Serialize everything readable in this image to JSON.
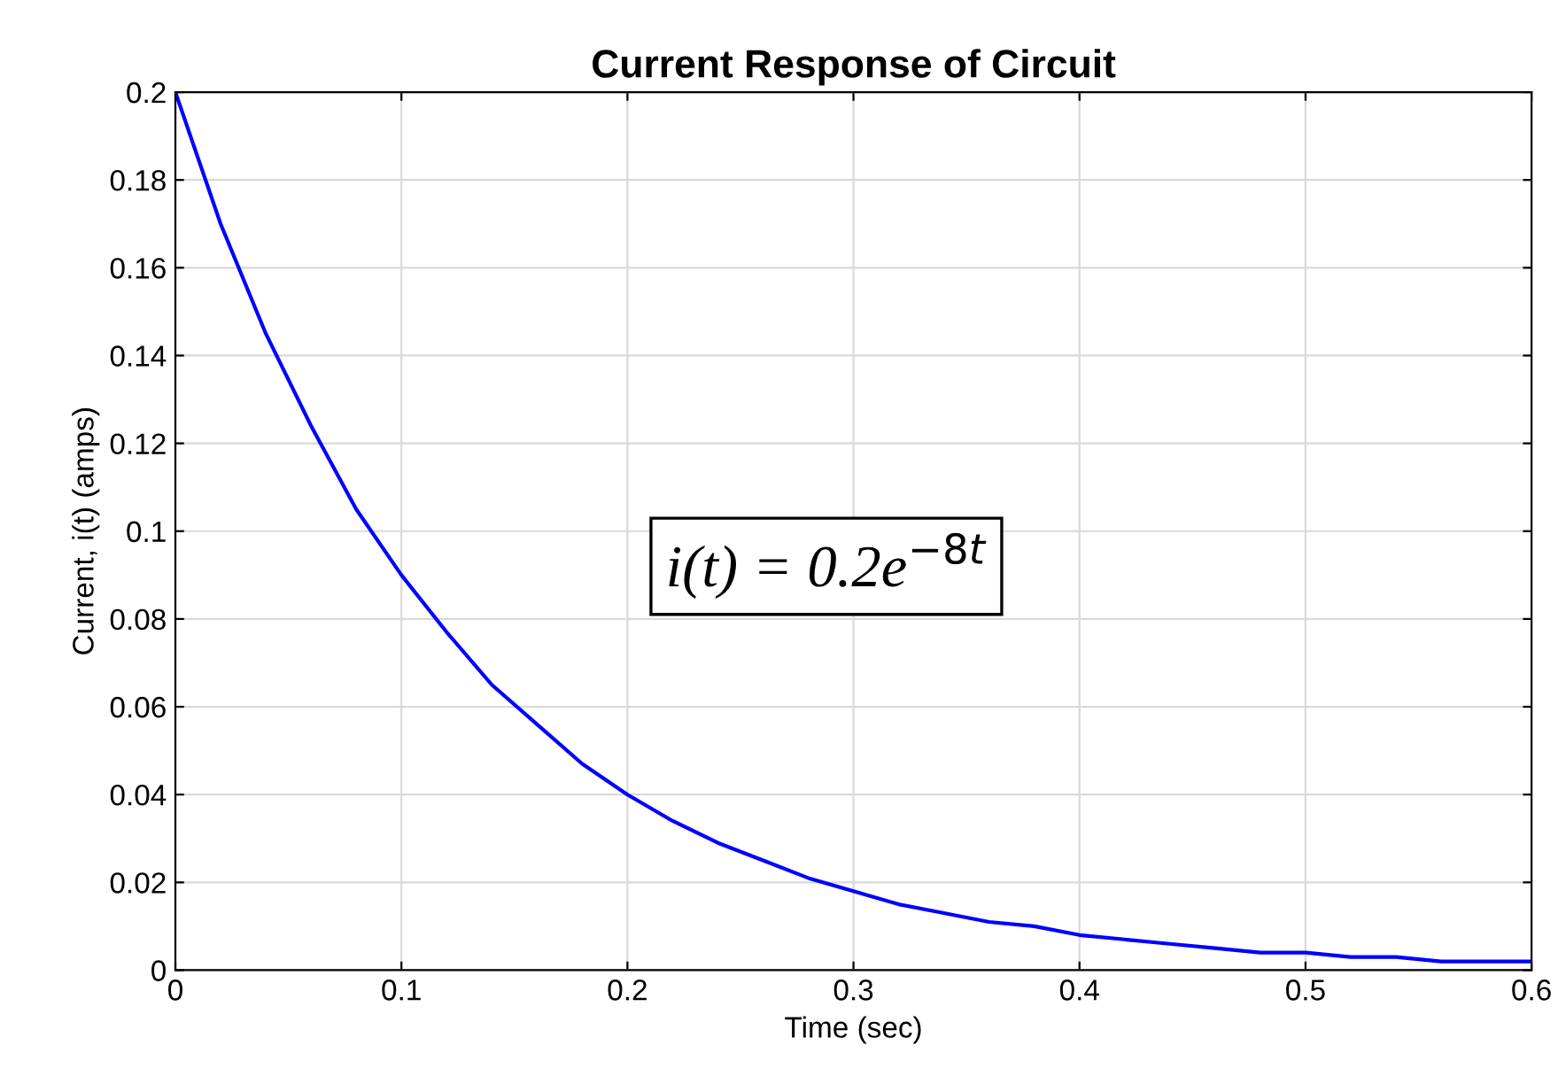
{
  "chart_data": {
    "type": "line",
    "title": "Current Response of Circuit",
    "xlabel": "Time (sec)",
    "ylabel": "Current, i(t) (amps)",
    "x": [
      0,
      0.02,
      0.04,
      0.06,
      0.08,
      0.1,
      0.12,
      0.14,
      0.16,
      0.18,
      0.2,
      0.22,
      0.24,
      0.26,
      0.28,
      0.3,
      0.32,
      0.34,
      0.36,
      0.38,
      0.4,
      0.42,
      0.44,
      0.46,
      0.48,
      0.5,
      0.52,
      0.54,
      0.56,
      0.58,
      0.6
    ],
    "series": [
      {
        "color": "#0000ff",
        "values": [
          0.2,
          0.17,
          0.145,
          0.124,
          0.105,
          0.09,
          0.077,
          0.065,
          0.056,
          0.047,
          0.04,
          0.034,
          0.029,
          0.025,
          0.021,
          0.018,
          0.015,
          0.013,
          0.011,
          0.01,
          0.008,
          0.007,
          0.006,
          0.005,
          0.004,
          0.004,
          0.003,
          0.003,
          0.002,
          0.002,
          0.002
        ]
      }
    ],
    "xlim": [
      0,
      0.6
    ],
    "xticks": [
      0,
      0.1,
      0.2,
      0.3,
      0.4,
      0.5,
      0.6
    ],
    "ylim": [
      0,
      0.2
    ],
    "yticks": [
      0,
      0.02,
      0.04,
      0.06,
      0.08,
      0.1,
      0.12,
      0.14,
      0.16,
      0.18,
      0.2
    ],
    "grid": true,
    "marker": "none",
    "line_style": "solid",
    "annotations": [
      "i(t) = 0.2e$^{−8t}$"
    ]
  }
}
